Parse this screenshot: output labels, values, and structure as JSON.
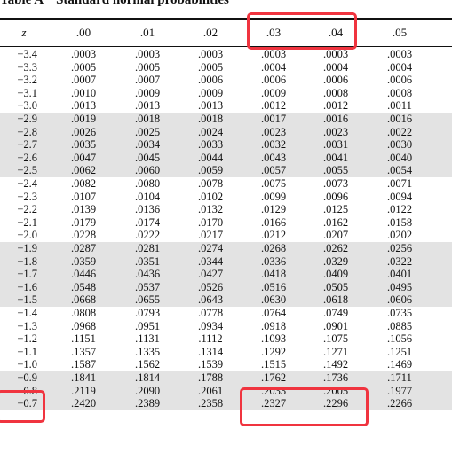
{
  "title": {
    "label": "Table A",
    "text": "Standard normal probabilities"
  },
  "columns": [
    "z",
    ".00",
    ".01",
    ".02",
    ".03",
    ".04",
    ".05"
  ],
  "rows": [
    {
      "z": "−3.4",
      "values": [
        ".0003",
        ".0003",
        ".0003",
        ".0003",
        ".0003",
        ".0003"
      ]
    },
    {
      "z": "−3.3",
      "values": [
        ".0005",
        ".0005",
        ".0005",
        ".0004",
        ".0004",
        ".0004"
      ]
    },
    {
      "z": "−3.2",
      "values": [
        ".0007",
        ".0007",
        ".0006",
        ".0006",
        ".0006",
        ".0006"
      ]
    },
    {
      "z": "−3.1",
      "values": [
        ".0010",
        ".0009",
        ".0009",
        ".0009",
        ".0008",
        ".0008"
      ]
    },
    {
      "z": "−3.0",
      "values": [
        ".0013",
        ".0013",
        ".0013",
        ".0012",
        ".0012",
        ".0011"
      ]
    },
    {
      "z": "−2.9",
      "values": [
        ".0019",
        ".0018",
        ".0018",
        ".0017",
        ".0016",
        ".0016"
      ]
    },
    {
      "z": "−2.8",
      "values": [
        ".0026",
        ".0025",
        ".0024",
        ".0023",
        ".0023",
        ".0022"
      ]
    },
    {
      "z": "−2.7",
      "values": [
        ".0035",
        ".0034",
        ".0033",
        ".0032",
        ".0031",
        ".0030"
      ]
    },
    {
      "z": "−2.6",
      "values": [
        ".0047",
        ".0045",
        ".0044",
        ".0043",
        ".0041",
        ".0040"
      ]
    },
    {
      "z": "−2.5",
      "values": [
        ".0062",
        ".0060",
        ".0059",
        ".0057",
        ".0055",
        ".0054"
      ]
    },
    {
      "z": "−2.4",
      "values": [
        ".0082",
        ".0080",
        ".0078",
        ".0075",
        ".0073",
        ".0071"
      ]
    },
    {
      "z": "−2.3",
      "values": [
        ".0107",
        ".0104",
        ".0102",
        ".0099",
        ".0096",
        ".0094"
      ]
    },
    {
      "z": "−2.2",
      "values": [
        ".0139",
        ".0136",
        ".0132",
        ".0129",
        ".0125",
        ".0122"
      ]
    },
    {
      "z": "−2.1",
      "values": [
        ".0179",
        ".0174",
        ".0170",
        ".0166",
        ".0162",
        ".0158"
      ]
    },
    {
      "z": "−2.0",
      "values": [
        ".0228",
        ".0222",
        ".0217",
        ".0212",
        ".0207",
        ".0202"
      ]
    },
    {
      "z": "−1.9",
      "values": [
        ".0287",
        ".0281",
        ".0274",
        ".0268",
        ".0262",
        ".0256"
      ]
    },
    {
      "z": "−1.8",
      "values": [
        ".0359",
        ".0351",
        ".0344",
        ".0336",
        ".0329",
        ".0322"
      ]
    },
    {
      "z": "−1.7",
      "values": [
        ".0446",
        ".0436",
        ".0427",
        ".0418",
        ".0409",
        ".0401"
      ]
    },
    {
      "z": "−1.6",
      "values": [
        ".0548",
        ".0537",
        ".0526",
        ".0516",
        ".0505",
        ".0495"
      ]
    },
    {
      "z": "−1.5",
      "values": [
        ".0668",
        ".0655",
        ".0643",
        ".0630",
        ".0618",
        ".0606"
      ]
    },
    {
      "z": "−1.4",
      "values": [
        ".0808",
        ".0793",
        ".0778",
        ".0764",
        ".0749",
        ".0735"
      ]
    },
    {
      "z": "−1.3",
      "values": [
        ".0968",
        ".0951",
        ".0934",
        ".0918",
        ".0901",
        ".0885"
      ]
    },
    {
      "z": "−1.2",
      "values": [
        ".1151",
        ".1131",
        ".1112",
        ".1093",
        ".1075",
        ".1056"
      ]
    },
    {
      "z": "−1.1",
      "values": [
        ".1357",
        ".1335",
        ".1314",
        ".1292",
        ".1271",
        ".1251"
      ]
    },
    {
      "z": "−1.0",
      "values": [
        ".1587",
        ".1562",
        ".1539",
        ".1515",
        ".1492",
        ".1469"
      ]
    },
    {
      "z": "−0.9",
      "values": [
        ".1841",
        ".1814",
        ".1788",
        ".1762",
        ".1736",
        ".1711"
      ]
    },
    {
      "z": "−0.8",
      "values": [
        ".2119",
        ".2090",
        ".2061",
        ".2033",
        ".2005",
        ".1977"
      ]
    },
    {
      "z": "−0.7",
      "values": [
        ".2420",
        ".2389",
        ".2358",
        ".2327",
        ".2296",
        ".2266"
      ]
    }
  ],
  "highlight_color": "#f0343f",
  "shade_color": "#e3e3e3"
}
